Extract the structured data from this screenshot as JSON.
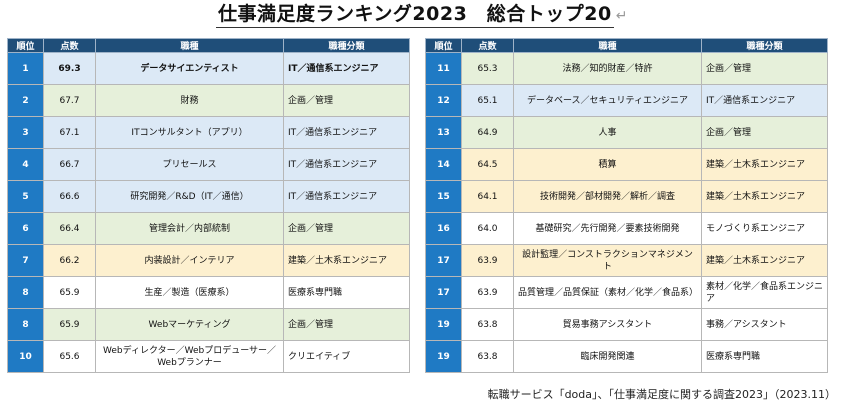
{
  "title": "仕事満足度ランキング2023　総合トップ20",
  "return_mark": "↵",
  "headers": {
    "rank": "順位",
    "score": "点数",
    "job": "職種",
    "category": "職種分類"
  },
  "left_rows": [
    {
      "rank": "1",
      "score": "69.3",
      "job": "データサイエンティスト",
      "category": "IT／通信系エンジニア",
      "color": "blue",
      "bold": true
    },
    {
      "rank": "2",
      "score": "67.7",
      "job": "財務",
      "category": "企画／管理",
      "color": "green"
    },
    {
      "rank": "3",
      "score": "67.1",
      "job": "ITコンサルタント（アプリ）",
      "category": "IT／通信系エンジニア",
      "color": "blue"
    },
    {
      "rank": "4",
      "score": "66.7",
      "job": "プリセールス",
      "category": "IT／通信系エンジニア",
      "color": "blue"
    },
    {
      "rank": "5",
      "score": "66.6",
      "job": "研究開発／R&D（IT／通信）",
      "category": "IT／通信系エンジニア",
      "color": "blue"
    },
    {
      "rank": "6",
      "score": "66.4",
      "job": "管理会計／内部統制",
      "category": "企画／管理",
      "color": "green"
    },
    {
      "rank": "7",
      "score": "66.2",
      "job": "内装設計／インテリア",
      "category": "建築／土木系エンジニア",
      "color": "yellow"
    },
    {
      "rank": "8",
      "score": "65.9",
      "job": "生産／製造（医療系）",
      "category": "医療系専門職",
      "color": "white"
    },
    {
      "rank": "8",
      "score": "65.9",
      "job": "Webマーケティング",
      "category": "企画／管理",
      "color": "green"
    },
    {
      "rank": "10",
      "score": "65.6",
      "job": "Webディレクター／Webプロデューサー／Webプランナー",
      "category": "クリエイティブ",
      "color": "white"
    }
  ],
  "right_rows": [
    {
      "rank": "11",
      "score": "65.3",
      "job": "法務／知的財産／特許",
      "category": "企画／管理",
      "color": "green"
    },
    {
      "rank": "12",
      "score": "65.1",
      "job": "データベース／セキュリティエンジニア",
      "category": "IT／通信系エンジニア",
      "color": "blue"
    },
    {
      "rank": "13",
      "score": "64.9",
      "job": "人事",
      "category": "企画／管理",
      "color": "green"
    },
    {
      "rank": "14",
      "score": "64.5",
      "job": "積算",
      "category": "建築／土木系エンジニア",
      "color": "yellow"
    },
    {
      "rank": "15",
      "score": "64.1",
      "job": "技術開発／部材開発／解析／調査",
      "category": "建築／土木系エンジニア",
      "color": "yellow"
    },
    {
      "rank": "16",
      "score": "64.0",
      "job": "基礎研究／先行開発／要素技術開発",
      "category": "モノづくり系エンジニア",
      "color": "white"
    },
    {
      "rank": "17",
      "score": "63.9",
      "job": "設計監理／コンストラクションマネジメント",
      "category": "建築／土木系エンジニア",
      "color": "yellow"
    },
    {
      "rank": "17",
      "score": "63.9",
      "job": "品質管理／品質保証（素材／化学／食品系）",
      "category": "素材／化学／食品系エンジニア",
      "color": "white"
    },
    {
      "rank": "19",
      "score": "63.8",
      "job": "貿易事務アシスタント",
      "category": "事務／アシスタント",
      "color": "white"
    },
    {
      "rank": "19",
      "score": "63.8",
      "job": "臨床開発関連",
      "category": "医療系専門職",
      "color": "white"
    }
  ],
  "source": "転職サービス「doda」、「仕事満足度に関する調査2023」（2023.11）"
}
